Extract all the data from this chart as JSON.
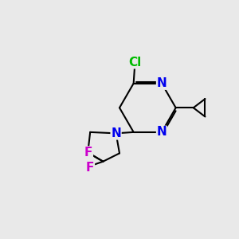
{
  "bg_color": "#e9e9e9",
  "bond_color": "#000000",
  "bond_width": 1.5,
  "atom_colors": {
    "N": "#0000ee",
    "Cl": "#00bb00",
    "F": "#cc00cc",
    "C": "#000000"
  },
  "font_size_atom": 10.5
}
